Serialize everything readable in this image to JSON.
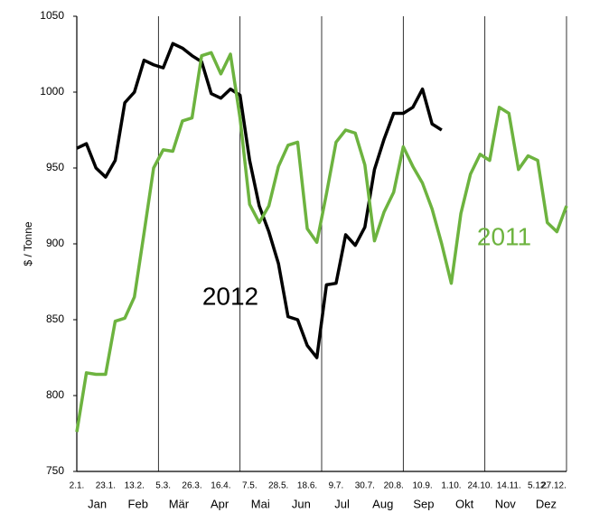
{
  "chart_data": {
    "type": "line",
    "y_label": "$ / Tonne",
    "categories": [
      "2.1.",
      null,
      null,
      "23.1.",
      null,
      null,
      "13.2.",
      null,
      null,
      "5.3.",
      null,
      null,
      "26.3.",
      null,
      null,
      "16.4.",
      null,
      null,
      "7.5.",
      null,
      null,
      "28.5.",
      null,
      null,
      "18.6.",
      null,
      null,
      "9.7.",
      null,
      null,
      "30.7.",
      null,
      null,
      "20.8.",
      null,
      null,
      "10.9.",
      null,
      null,
      "1.10.",
      null,
      null,
      "24.10.",
      null,
      null,
      "14.11.",
      null,
      null,
      "5.12.",
      null,
      null,
      "27.12."
    ],
    "months": [
      "Jan",
      "Feb",
      "Mär",
      "Apr",
      "Mai",
      "Jun",
      "Jul",
      "Aug",
      "Sep",
      "Okt",
      "Nov",
      "Dez"
    ],
    "series": [
      {
        "name": "2012",
        "color": "#000000",
        "values": [
          963,
          966,
          950,
          944,
          955,
          993,
          1000,
          1021,
          1018,
          1016,
          1032,
          1029,
          1024,
          1020,
          999,
          996,
          1002,
          998,
          955,
          925,
          908,
          887,
          852,
          850,
          833,
          825,
          873,
          874,
          906,
          899,
          911,
          949,
          969,
          986,
          986,
          990,
          1002,
          979,
          975,
          null,
          null,
          null,
          null,
          null,
          null,
          null,
          null,
          null,
          null,
          null,
          null,
          null
        ]
      },
      {
        "name": "2011",
        "color": "#6db33f",
        "values": [
          776,
          815,
          814,
          814,
          849,
          851,
          865,
          907,
          950,
          962,
          961,
          981,
          983,
          1024,
          1026,
          1012,
          1025,
          983,
          926,
          914,
          925,
          951,
          965,
          967,
          910,
          901,
          933,
          967,
          975,
          973,
          952,
          902,
          921,
          934,
          964,
          951,
          940,
          923,
          900,
          874,
          920,
          946,
          959,
          955,
          990,
          986,
          949,
          958,
          955,
          914,
          908,
          925
        ]
      }
    ],
    "ylim": [
      750,
      1050
    ],
    "yticks": [
      750,
      800,
      850,
      900,
      950,
      1000,
      1050
    ]
  }
}
